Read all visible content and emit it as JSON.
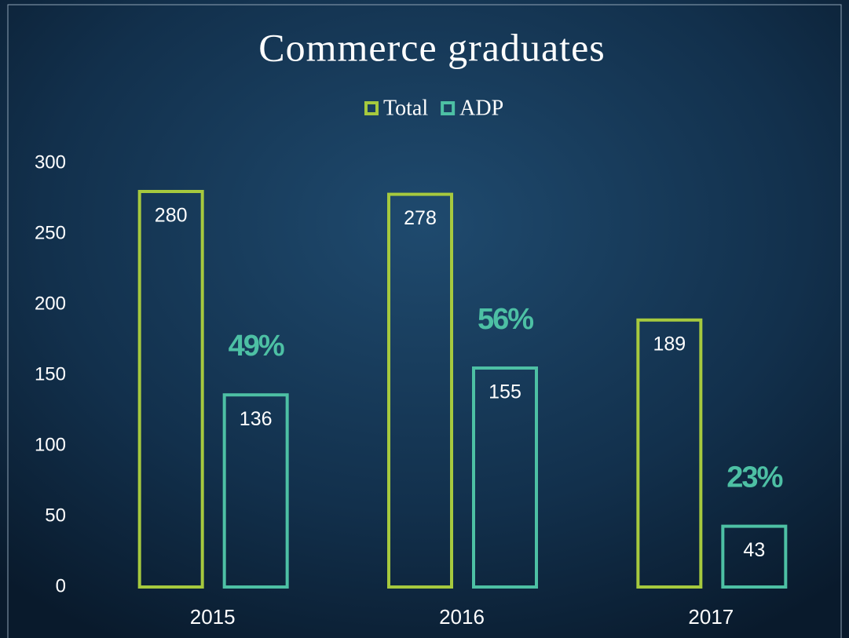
{
  "chart_data": {
    "type": "bar",
    "title": "Commerce graduates",
    "categories": [
      "2015",
      "2016",
      "2017"
    ],
    "series": [
      {
        "name": "Total",
        "color": "#a6c93e",
        "values": [
          280,
          278,
          189
        ]
      },
      {
        "name": "ADP",
        "color": "#4dc0a4",
        "values": [
          136,
          155,
          43
        ]
      }
    ],
    "annotations": [
      "49%",
      "56%",
      "23%"
    ],
    "ylim": [
      0,
      300
    ],
    "yticks": [
      0,
      50,
      100,
      150,
      200,
      250,
      300
    ],
    "grid": false,
    "legend": "top"
  }
}
